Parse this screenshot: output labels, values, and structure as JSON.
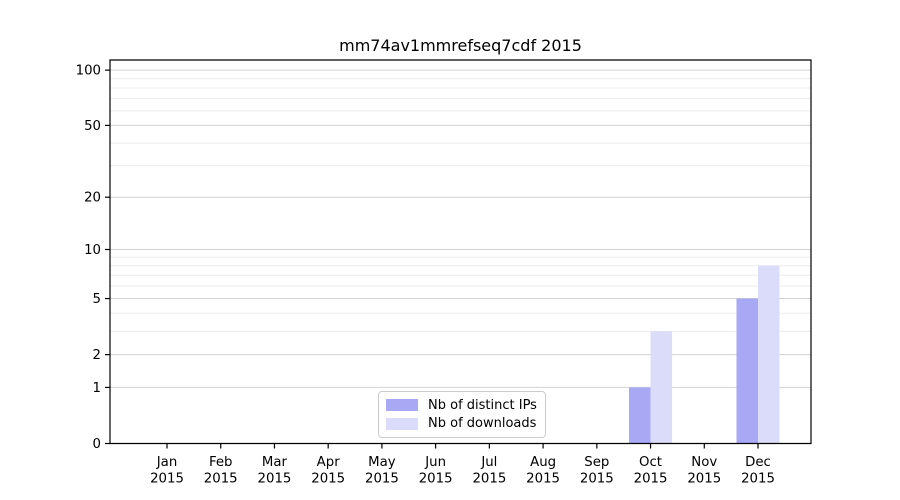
{
  "chart_data": {
    "type": "bar",
    "title": "mm74av1mmrefseq7cdf 2015",
    "categories": [
      "Jan",
      "Feb",
      "Mar",
      "Apr",
      "May",
      "Jun",
      "Jul",
      "Aug",
      "Sep",
      "Oct",
      "Nov",
      "Dec"
    ],
    "x_tick_second_line": "2015",
    "series": [
      {
        "name": "Nb of distinct IPs",
        "color": "#a8a8f4",
        "values": [
          0,
          0,
          0,
          0,
          0,
          0,
          0,
          0,
          0,
          1,
          0,
          5
        ]
      },
      {
        "name": "Nb of downloads",
        "color": "#dbdbfa",
        "values": [
          0,
          0,
          0,
          0,
          0,
          0,
          0,
          0,
          0,
          3,
          0,
          8
        ]
      }
    ],
    "yscale": "log1p",
    "ylim": [
      0,
      113
    ],
    "y_major_ticks": [
      0,
      1,
      2,
      5,
      10,
      20,
      50,
      100
    ],
    "y_minor_gridlines": [
      3,
      4,
      6,
      7,
      8,
      9,
      30,
      40,
      60,
      70,
      80,
      90
    ],
    "grid": "both",
    "legend_position": "lower center"
  },
  "colors": {
    "background": "#ffffff",
    "spine": "#000000",
    "major_grid": "#d2d2d2",
    "minor_grid": "#ececec",
    "tick_label": "#000000",
    "legend_border": "#cccccc"
  }
}
